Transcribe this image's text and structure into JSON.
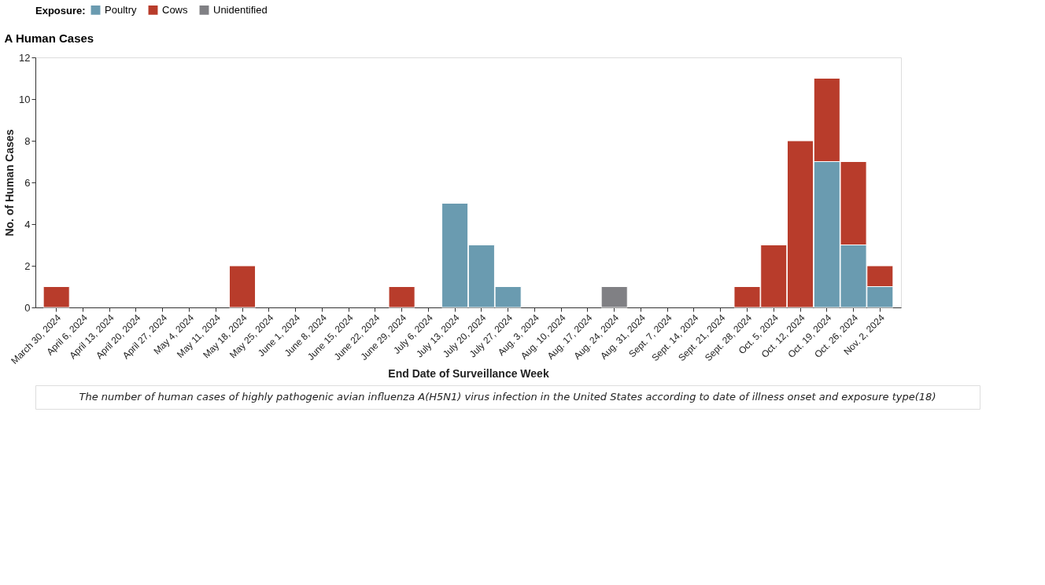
{
  "chart_data": {
    "type": "bar",
    "title": "A  Human Cases",
    "xlabel": "End Date of Surveillance Week",
    "ylabel": "No. of Human Cases",
    "legend_title": "Exposure:",
    "categories": [
      "March 30, 2024",
      "April 6, 2024",
      "April 13, 2024",
      "April 20, 2024",
      "April 27, 2024",
      "May 4, 2024",
      "May 11, 2024",
      "May 18, 2024",
      "May 25, 2024",
      "June 1, 2024",
      "June 8, 2024",
      "June 15, 2024",
      "June 22, 2024",
      "June 29, 2024",
      "July 6, 2024",
      "July 13, 2024",
      "July 20, 2024",
      "July 27, 2024",
      "Aug. 3, 2024",
      "Aug. 10, 2024",
      "Aug. 17, 2024",
      "Aug. 24, 2024",
      "Aug. 31, 2024",
      "Sept. 7, 2024",
      "Sept. 14, 2024",
      "Sept. 21, 2024",
      "Sept. 28, 2024",
      "Oct. 5, 2024",
      "Oct. 12, 2024",
      "Oct. 19, 2024",
      "Oct. 26, 2024",
      "Nov. 2, 2024"
    ],
    "series": [
      {
        "name": "Poultry",
        "color": "#6a9bb0",
        "values": [
          null,
          null,
          null,
          null,
          null,
          null,
          null,
          null,
          null,
          null,
          null,
          null,
          null,
          null,
          null,
          5,
          3,
          1,
          null,
          null,
          null,
          null,
          null,
          null,
          null,
          null,
          null,
          null,
          null,
          7,
          3,
          1
        ]
      },
      {
        "name": "Cows",
        "color": "#b83c2b",
        "values": [
          1,
          null,
          null,
          null,
          null,
          null,
          null,
          2,
          null,
          null,
          null,
          null,
          null,
          1,
          null,
          null,
          null,
          null,
          null,
          null,
          null,
          null,
          null,
          null,
          null,
          null,
          1,
          3,
          8,
          4,
          4,
          1
        ]
      },
      {
        "name": "Unidentified",
        "color": "#808084",
        "values": [
          null,
          null,
          null,
          null,
          null,
          null,
          null,
          null,
          null,
          null,
          null,
          null,
          null,
          null,
          null,
          null,
          null,
          null,
          null,
          null,
          null,
          1,
          null,
          null,
          null,
          null,
          null,
          null,
          null,
          null,
          null,
          null
        ]
      }
    ],
    "stacked": true,
    "ylim": [
      0,
      12
    ],
    "yticks": [
      0,
      2,
      4,
      6,
      8,
      10,
      12
    ],
    "grid": false,
    "legend": "top",
    "annotations": [
      "The number of human cases of highly pathogenic avian influenza A(H5N1) virus infection in the United States according to date of illness onset and exposure type(18)"
    ]
  }
}
